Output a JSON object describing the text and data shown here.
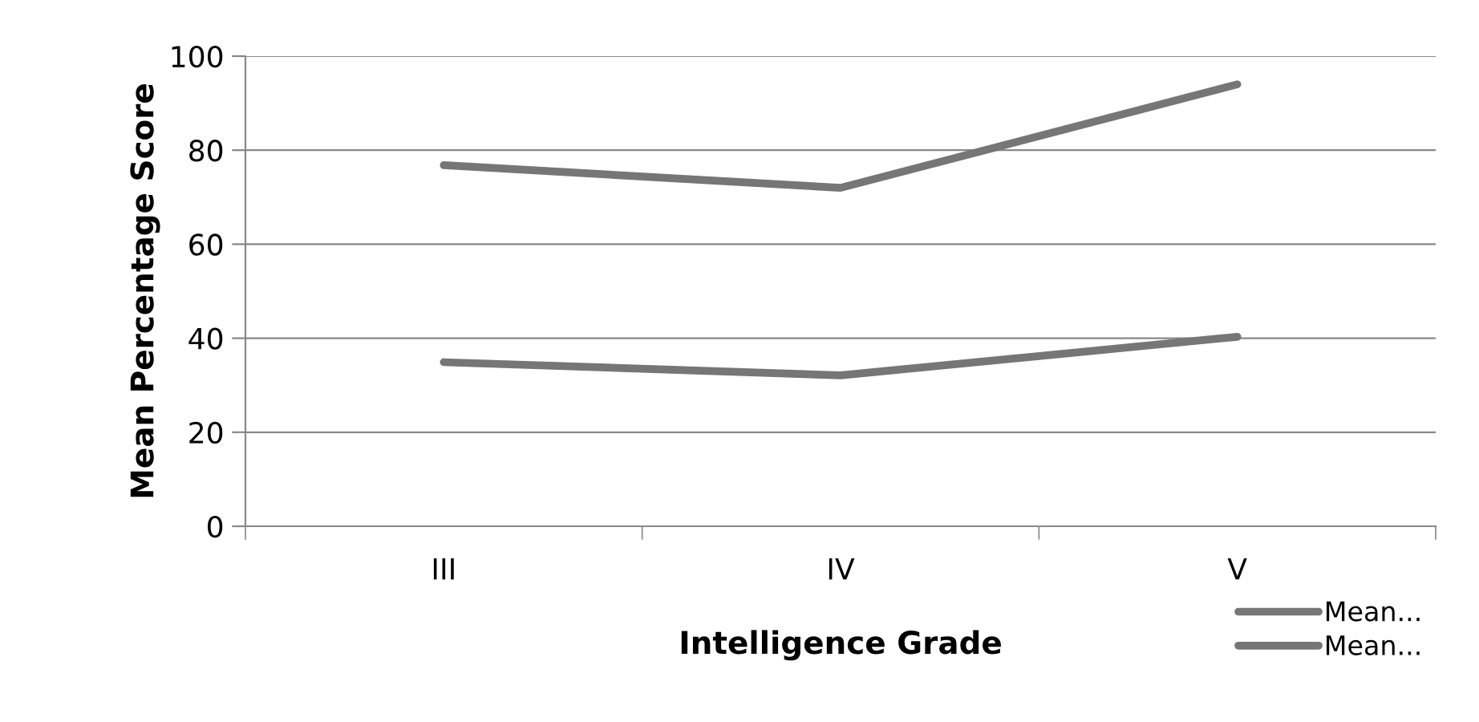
{
  "chart_data": {
    "type": "line",
    "xlabel": "Intelligence Grade",
    "ylabel": "Mean Percentage Score",
    "categories": [
      "III",
      "IV",
      "V"
    ],
    "series": [
      {
        "name": "Mean...",
        "color": "#767676",
        "values": [
          76.8,
          72,
          94
        ]
      },
      {
        "name": "Mean...",
        "color": "#767676",
        "values": [
          34.9,
          32.1,
          40.3
        ]
      }
    ],
    "ylim": [
      0,
      100
    ],
    "yticks": [
      0,
      20,
      40,
      60,
      80,
      100
    ],
    "grid": "y",
    "legend": "bottom right",
    "marker": "none",
    "line_style": "solid"
  }
}
